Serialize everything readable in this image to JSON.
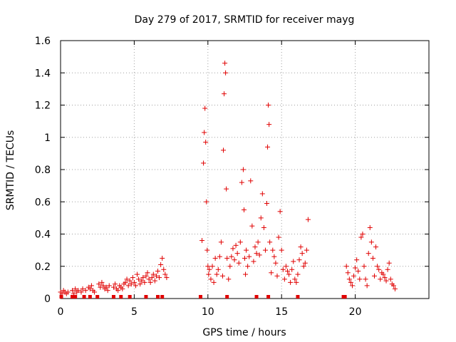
{
  "chart_data": {
    "type": "scatter",
    "title": "Day 279 of 2017, SRMTID for receiver mayg",
    "xlabel": "GPS time / hours",
    "ylabel": "SRMTID / TECUs",
    "xlim": [
      0,
      25
    ],
    "ylim": [
      0,
      1.6
    ],
    "xticks": [
      0,
      5,
      10,
      15,
      20
    ],
    "yticks": [
      0,
      0.2,
      0.4,
      0.6,
      0.8,
      1,
      1.2,
      1.4,
      1.6
    ],
    "ytick_labels": [
      "0",
      "0.2",
      "0.4",
      "0.6",
      "0.8",
      "1",
      "1.2",
      "1.4",
      "1.6"
    ],
    "grid": true,
    "color": "#e00000",
    "marker": "plus",
    "bottom_markers_x": [
      0.05,
      0.8,
      1.0,
      1.6,
      2.0,
      2.5,
      3.6,
      4.1,
      4.7,
      5.8,
      6.6,
      6.9,
      9.5,
      11.3,
      13.3,
      14.1,
      16.1,
      19.2,
      19.3
    ],
    "series": [
      {
        "name": "SRMTID",
        "x": [
          0.0,
          0.1,
          0.2,
          0.3,
          0.4,
          0.5,
          0.8,
          0.9,
          1.0,
          1.1,
          1.2,
          1.4,
          1.5,
          1.7,
          1.9,
          2.0,
          2.1,
          2.2,
          2.3,
          2.6,
          2.7,
          2.8,
          2.9,
          3.0,
          3.1,
          3.2,
          3.3,
          3.6,
          3.7,
          3.8,
          3.9,
          4.0,
          4.1,
          4.2,
          4.3,
          4.4,
          4.5,
          4.6,
          4.7,
          4.8,
          4.9,
          5.0,
          5.1,
          5.2,
          5.3,
          5.4,
          5.5,
          5.6,
          5.7,
          5.8,
          5.9,
          6.0,
          6.1,
          6.2,
          6.3,
          6.4,
          6.5,
          6.6,
          6.7,
          6.8,
          6.9,
          7.0,
          7.1,
          7.2,
          9.6,
          9.7,
          9.75,
          9.8,
          9.85,
          9.9,
          9.95,
          10.0,
          10.05,
          10.1,
          10.2,
          10.3,
          10.4,
          10.5,
          10.6,
          10.7,
          10.8,
          10.9,
          11.0,
          11.05,
          11.1,
          11.15,
          11.2,
          11.25,
          11.3,
          11.4,
          11.5,
          11.6,
          11.7,
          11.8,
          11.9,
          12.0,
          12.1,
          12.2,
          12.3,
          12.4,
          12.45,
          12.5,
          12.55,
          12.6,
          12.7,
          12.8,
          12.9,
          13.0,
          13.1,
          13.2,
          13.3,
          13.4,
          13.5,
          13.6,
          13.7,
          13.8,
          13.9,
          14.0,
          14.05,
          14.1,
          14.15,
          14.2,
          14.3,
          14.4,
          14.5,
          14.6,
          14.7,
          14.8,
          14.9,
          15.0,
          15.1,
          15.2,
          15.3,
          15.4,
          15.5,
          15.6,
          15.7,
          15.8,
          15.9,
          16.0,
          16.1,
          16.2,
          16.3,
          16.4,
          16.5,
          16.6,
          16.7,
          16.8,
          19.4,
          19.5,
          19.6,
          19.7,
          19.8,
          19.9,
          20.0,
          20.1,
          20.2,
          20.3,
          20.4,
          20.5,
          20.6,
          20.7,
          20.8,
          20.9,
          21.0,
          21.1,
          21.2,
          21.3,
          21.4,
          21.5,
          21.6,
          21.7,
          21.8,
          21.9,
          22.0,
          22.1,
          22.2,
          22.3,
          22.4,
          22.5,
          22.6,
          22.7
        ],
        "y": [
          0.04,
          0.03,
          0.05,
          0.04,
          0.03,
          0.04,
          0.05,
          0.03,
          0.06,
          0.04,
          0.05,
          0.04,
          0.06,
          0.05,
          0.07,
          0.06,
          0.08,
          0.05,
          0.04,
          0.09,
          0.07,
          0.1,
          0.08,
          0.06,
          0.07,
          0.05,
          0.08,
          0.07,
          0.09,
          0.06,
          0.05,
          0.08,
          0.07,
          0.06,
          0.09,
          0.1,
          0.12,
          0.08,
          0.11,
          0.09,
          0.13,
          0.1,
          0.08,
          0.15,
          0.12,
          0.09,
          0.11,
          0.13,
          0.1,
          0.14,
          0.16,
          0.12,
          0.1,
          0.13,
          0.15,
          0.11,
          0.14,
          0.17,
          0.13,
          0.21,
          0.25,
          0.18,
          0.15,
          0.13,
          0.36,
          0.84,
          1.03,
          1.18,
          0.97,
          0.6,
          0.3,
          0.2,
          0.15,
          0.18,
          0.12,
          0.2,
          0.1,
          0.25,
          0.15,
          0.18,
          0.26,
          0.35,
          0.14,
          0.92,
          1.27,
          1.46,
          1.4,
          0.68,
          0.25,
          0.12,
          0.2,
          0.26,
          0.31,
          0.24,
          0.33,
          0.28,
          0.22,
          0.35,
          0.72,
          0.8,
          0.55,
          0.25,
          0.15,
          0.3,
          0.2,
          0.26,
          0.73,
          0.45,
          0.23,
          0.32,
          0.28,
          0.35,
          0.27,
          0.5,
          0.65,
          0.44,
          0.3,
          0.59,
          0.94,
          1.2,
          1.08,
          0.35,
          0.16,
          0.3,
          0.26,
          0.22,
          0.14,
          0.38,
          0.54,
          0.3,
          0.18,
          0.12,
          0.2,
          0.17,
          0.15,
          0.1,
          0.18,
          0.23,
          0.12,
          0.1,
          0.15,
          0.24,
          0.32,
          0.28,
          0.2,
          0.22,
          0.3,
          0.49,
          0.2,
          0.16,
          0.12,
          0.1,
          0.08,
          0.14,
          0.19,
          0.24,
          0.17,
          0.12,
          0.38,
          0.4,
          0.2,
          0.12,
          0.08,
          0.28,
          0.44,
          0.35,
          0.25,
          0.14,
          0.32,
          0.2,
          0.18,
          0.12,
          0.16,
          0.15,
          0.13,
          0.11,
          0.18,
          0.22,
          0.12,
          0.09,
          0.08,
          0.06
        ]
      }
    ]
  }
}
